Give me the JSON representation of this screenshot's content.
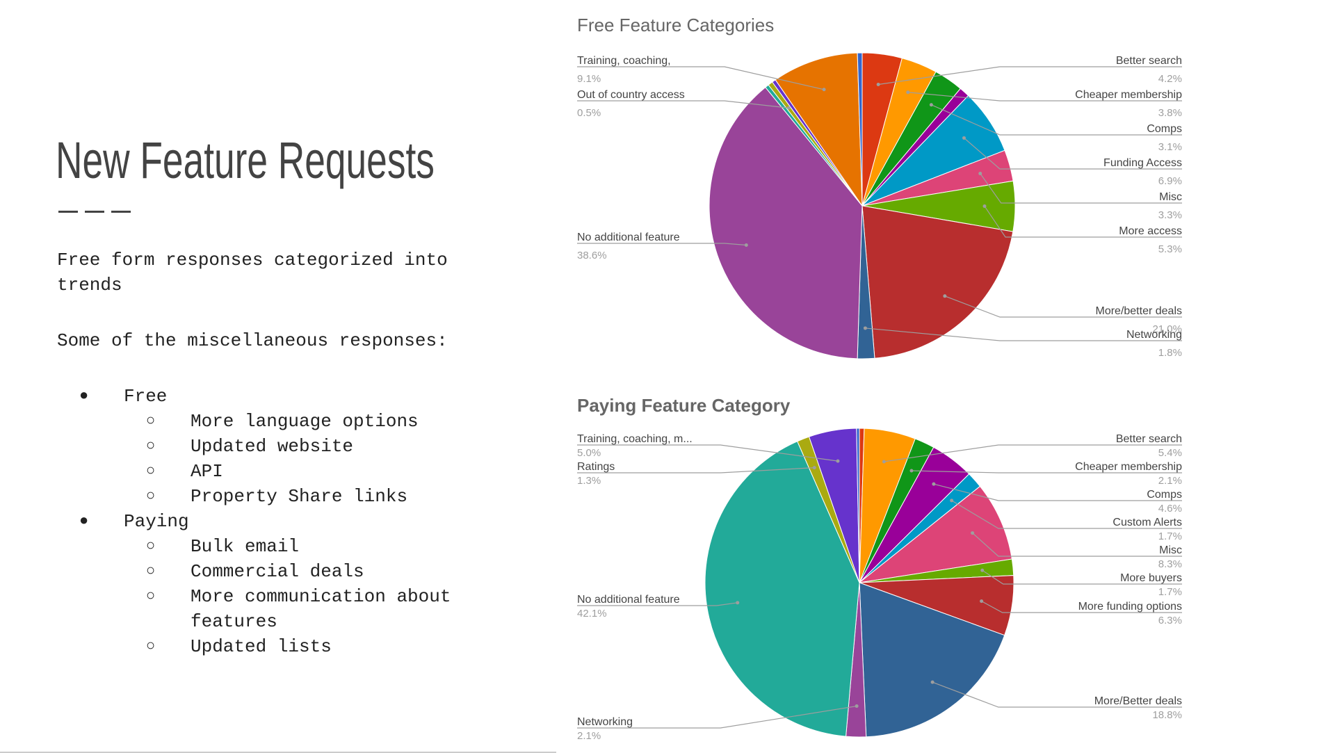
{
  "slide": {
    "title": "New Feature Requests",
    "intro": "Free form responses categorized into trends",
    "misc_heading": "Some of the miscellaneous responses:",
    "groups": [
      {
        "label": "Free",
        "items": [
          "More language options",
          "Updated website",
          "API",
          "Property Share links"
        ]
      },
      {
        "label": "Paying",
        "items": [
          "Bulk email",
          "Commercial deals",
          "More communication about features",
          "Updated lists"
        ]
      }
    ]
  },
  "chart_data": [
    {
      "type": "pie",
      "title": "Free Feature Categories",
      "slices": [
        {
          "label": "Better search",
          "value": 4.2,
          "pct": "4.2%",
          "color": "#dc3912"
        },
        {
          "label": "Cheaper membership",
          "value": 3.8,
          "pct": "3.8%",
          "color": "#ff9900"
        },
        {
          "label": "Comps",
          "value": 3.1,
          "pct": "3.1%",
          "color": "#109618"
        },
        {
          "label": "",
          "value": 1.1,
          "pct": "",
          "color": "#990099"
        },
        {
          "label": "Funding Access",
          "value": 6.9,
          "pct": "6.9%",
          "color": "#0099c6"
        },
        {
          "label": "Misc",
          "value": 3.3,
          "pct": "3.3%",
          "color": "#dd4477"
        },
        {
          "label": "More access",
          "value": 5.3,
          "pct": "5.3%",
          "color": "#66aa00"
        },
        {
          "label": "More/better deals",
          "value": 21.0,
          "pct": "21.0%",
          "color": "#b82e2e"
        },
        {
          "label": "Networking",
          "value": 1.8,
          "pct": "1.8%",
          "color": "#316395"
        },
        {
          "label": "No additional feature",
          "value": 38.6,
          "pct": "38.6%",
          "color": "#994499"
        },
        {
          "label": "",
          "value": 0.4,
          "pct": "",
          "color": "#22aa99"
        },
        {
          "label": "Out of country access",
          "value": 0.5,
          "pct": "0.5%",
          "color": "#aaaa11"
        },
        {
          "label": "",
          "value": 0.4,
          "pct": "",
          "color": "#6633cc"
        },
        {
          "label": "Training, coaching,",
          "value": 9.1,
          "pct": "9.1%",
          "color": "#e67300"
        },
        {
          "label": "",
          "value": 0.5,
          "pct": "",
          "color": "#3366cc"
        }
      ]
    },
    {
      "type": "pie",
      "title": "Paying Feature Category",
      "slices": [
        {
          "label": "",
          "value": 0.5,
          "pct": "",
          "color": "#dc3912"
        },
        {
          "label": "Better search",
          "value": 5.4,
          "pct": "5.4%",
          "color": "#ff9900"
        },
        {
          "label": "Cheaper membership",
          "value": 2.1,
          "pct": "2.1%",
          "color": "#109618"
        },
        {
          "label": "Comps",
          "value": 4.6,
          "pct": "4.6%",
          "color": "#990099"
        },
        {
          "label": "Custom Alerts",
          "value": 1.7,
          "pct": "1.7%",
          "color": "#0099c6"
        },
        {
          "label": "Misc",
          "value": 8.3,
          "pct": "8.3%",
          "color": "#dd4477"
        },
        {
          "label": "More buyers",
          "value": 1.7,
          "pct": "1.7%",
          "color": "#66aa00"
        },
        {
          "label": "More funding options",
          "value": 6.3,
          "pct": "6.3%",
          "color": "#b82e2e"
        },
        {
          "label": "More/Better deals",
          "value": 18.8,
          "pct": "18.8%",
          "color": "#316395"
        },
        {
          "label": "Networking",
          "value": 2.1,
          "pct": "2.1%",
          "color": "#994499"
        },
        {
          "label": "No additional feature",
          "value": 42.1,
          "pct": "42.1%",
          "color": "#22aa99"
        },
        {
          "label": "Ratings",
          "value": 1.3,
          "pct": "1.3%",
          "color": "#aaaa11"
        },
        {
          "label": "Training, coaching, m...",
          "value": 5.0,
          "pct": "5.0%",
          "color": "#6633cc"
        },
        {
          "label": "",
          "value": 0.3,
          "pct": "",
          "color": "#3366cc"
        }
      ]
    }
  ]
}
